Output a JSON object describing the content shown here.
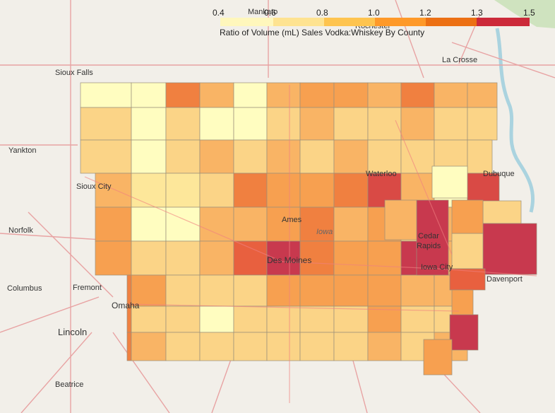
{
  "legend": {
    "title": "Ratio of Volume (mL) Sales Vodka:Whiskey By County",
    "ticks": [
      "0.4",
      "0.6",
      "0.8",
      "1.0",
      "1.2",
      "1.3",
      "1.5"
    ],
    "colors": [
      "#fff7bc",
      "#fee391",
      "#fec44f",
      "#fe9929",
      "#ec7014",
      "#cc4c02",
      "#b2182b"
    ]
  },
  "places": [
    {
      "name": "Sioux Falls"
    },
    {
      "name": "Yankton"
    },
    {
      "name": "Sioux City"
    },
    {
      "name": "Norfolk"
    },
    {
      "name": "Columbus"
    },
    {
      "name": "Fremont"
    },
    {
      "name": "Omaha"
    },
    {
      "name": "Lincoln"
    },
    {
      "name": "Beatrice"
    },
    {
      "name": "Mankato"
    },
    {
      "name": "Rochester"
    },
    {
      "name": "La Crosse"
    },
    {
      "name": "Waterloo"
    },
    {
      "name": "Dubuque"
    },
    {
      "name": "Ames"
    },
    {
      "name": "Iowa"
    },
    {
      "name": "Des Moines"
    },
    {
      "name": "Cedar Rapids"
    },
    {
      "name": "Iowa City"
    },
    {
      "name": "Davenport"
    }
  ]
}
